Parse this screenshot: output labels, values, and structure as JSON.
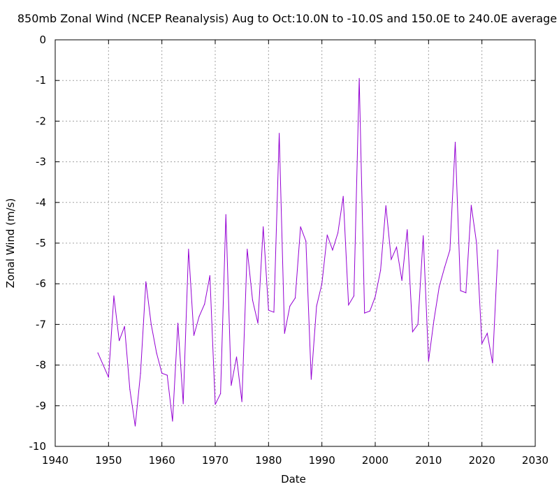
{
  "chart_data": {
    "type": "line",
    "title": "850mb Zonal Wind (NCEP Reanalysis) Aug to Oct:10.0N to -10.0S and 150.0E to 240.0E average",
    "xlabel": "Date",
    "ylabel": "Zonal Wind (m/s)",
    "xlim": [
      1940,
      2030
    ],
    "ylim": [
      -10,
      0
    ],
    "xticks": [
      "1940",
      "1950",
      "1960",
      "1970",
      "1980",
      "1990",
      "2000",
      "2010",
      "2020",
      "2030"
    ],
    "yticks": [
      "0",
      "-1",
      "-2",
      "-3",
      "-4",
      "-5",
      "-6",
      "-7",
      "-8",
      "-9",
      "-10"
    ],
    "grid": true,
    "legend": "none",
    "series": [
      {
        "color": "#9400d3",
        "x": [
          1948,
          1949,
          1950,
          1951,
          1952,
          1953,
          1954,
          1955,
          1956,
          1957,
          1958,
          1959,
          1960,
          1961,
          1962,
          1963,
          1964,
          1965,
          1966,
          1967,
          1968,
          1969,
          1970,
          1971,
          1972,
          1973,
          1974,
          1975,
          1976,
          1977,
          1978,
          1979,
          1980,
          1981,
          1982,
          1983,
          1984,
          1985,
          1986,
          1987,
          1988,
          1989,
          1990,
          1991,
          1992,
          1993,
          1994,
          1995,
          1996,
          1997,
          1998,
          1999,
          2000,
          2001,
          2002,
          2003,
          2004,
          2005,
          2006,
          2007,
          2008,
          2009,
          2010,
          2011,
          2012,
          2013,
          2014,
          2015,
          2016,
          2017,
          2018,
          2019,
          2020,
          2021,
          2022,
          2023
        ],
        "y": [
          -7.7,
          -8.0,
          -8.3,
          -6.3,
          -7.4,
          -7.05,
          -8.6,
          -9.5,
          -8.2,
          -5.95,
          -7.0,
          -7.7,
          -8.2,
          -8.25,
          -9.38,
          -6.97,
          -8.95,
          -5.15,
          -7.27,
          -6.8,
          -6.5,
          -5.8,
          -8.97,
          -8.7,
          -4.3,
          -8.5,
          -7.8,
          -8.9,
          -5.15,
          -6.4,
          -6.97,
          -4.6,
          -6.65,
          -6.7,
          -2.3,
          -7.22,
          -6.55,
          -6.35,
          -4.6,
          -4.95,
          -8.35,
          -6.55,
          -6.0,
          -4.8,
          -5.17,
          -4.75,
          -3.85,
          -6.52,
          -6.3,
          -0.95,
          -6.72,
          -6.67,
          -6.32,
          -5.67,
          -4.08,
          -5.4,
          -5.1,
          -5.92,
          -4.67,
          -7.18,
          -7.0,
          -4.82,
          -7.9,
          -6.9,
          -6.07,
          -5.6,
          -5.17,
          -2.52,
          -6.17,
          -6.22,
          -4.07,
          -5.0,
          -7.47,
          -7.22,
          -7.95,
          -5.17
        ]
      }
    ]
  }
}
